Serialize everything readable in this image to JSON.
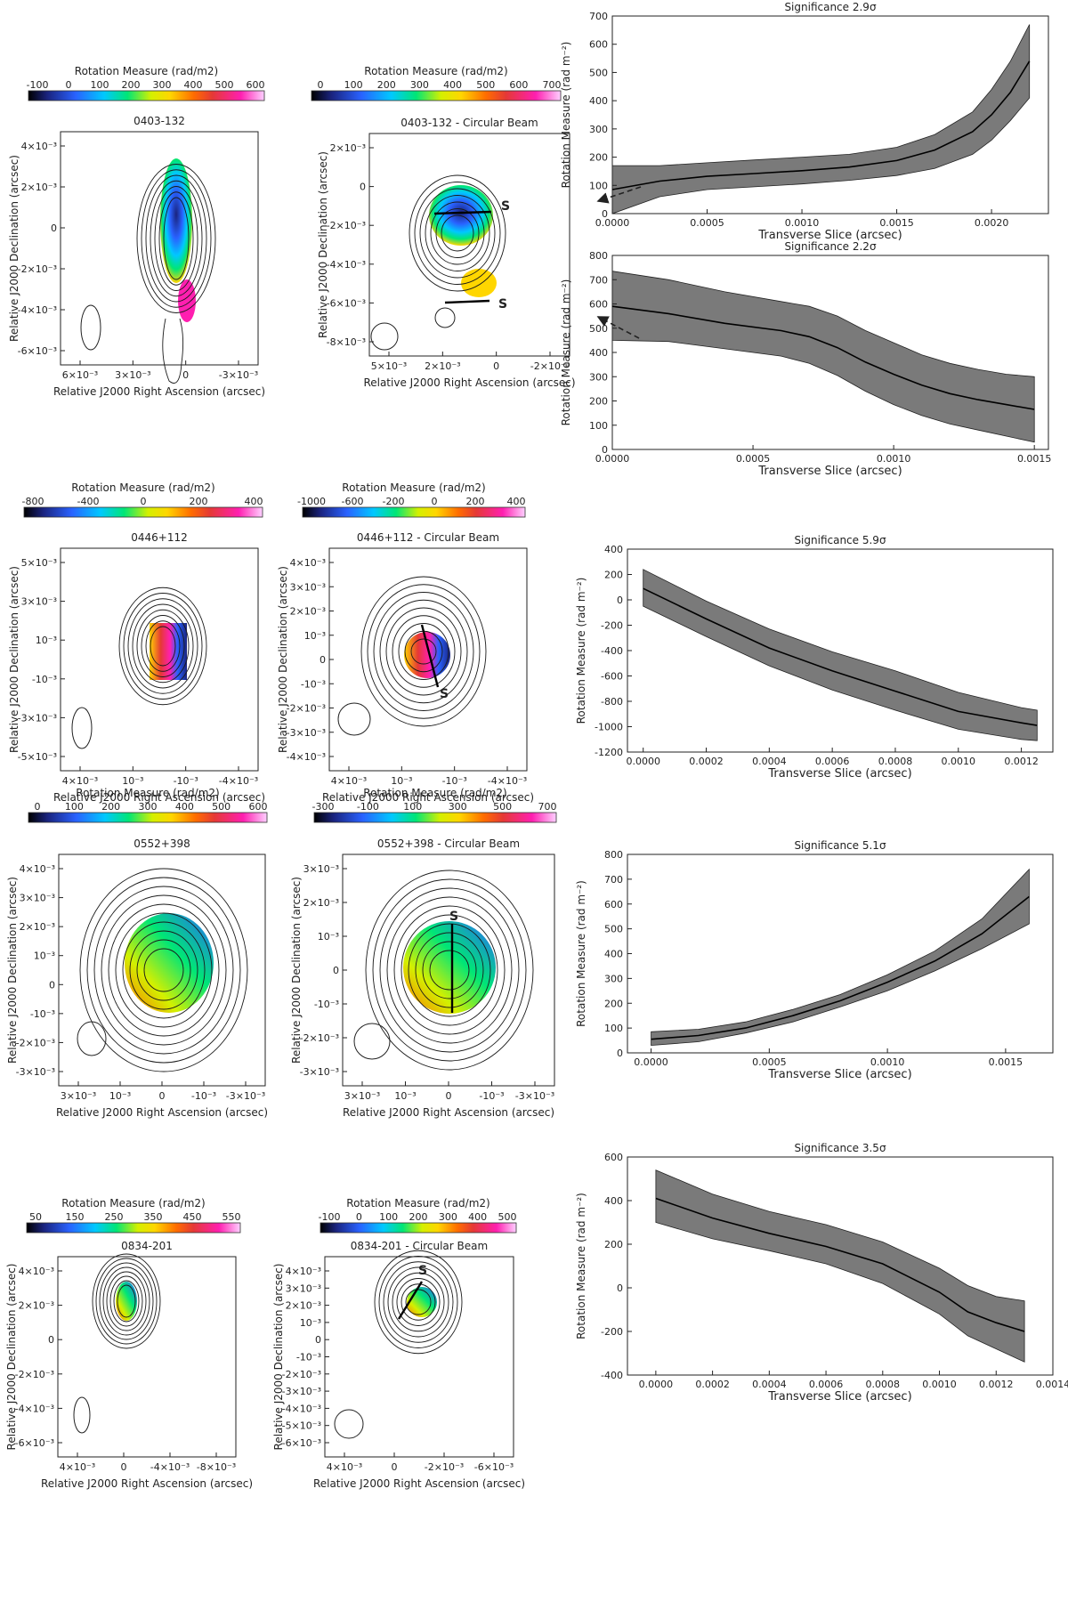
{
  "colorbar_label": "Rotation Measure (rad/m2)",
  "xlabel_map": "Relative J2000 Right Ascension (arcsec)",
  "ylabel_map": "Relative J2000 Declination (arcsec)",
  "slice_marker": "S",
  "colors": {
    "rm_gradient": [
      "#000000",
      "#1a237e",
      "#2962ff",
      "#00c8ff",
      "#00e676",
      "#d4f000",
      "#ffd600",
      "#ff6d00",
      "#e53935",
      "#ff1fb0",
      "#ffd0ff"
    ],
    "band": "#7a7a7a",
    "line": "#000000",
    "contour": "#1a1a1a"
  },
  "chart_data": [
    {
      "type": "image",
      "panel": "map",
      "title": "0403-132",
      "colorbar": {
        "label": "Rotation Measure (rad/m2)",
        "ticks": [
          "-100",
          "0",
          "100",
          "200",
          "300",
          "400",
          "500",
          "600"
        ]
      },
      "xticks": [
        "6×10⁻³",
        "3×10⁻³",
        "0",
        "-3×10⁻³"
      ],
      "yticks": [
        "4×10⁻³",
        "2×10⁻³",
        "0",
        "-2×10⁻³",
        "-4×10⁻³",
        "-6×10⁻³"
      ],
      "xlabel": "Relative J2000 Right Ascension (arcsec)",
      "ylabel": "Relative J2000 Declination (arcsec)"
    },
    {
      "type": "image",
      "panel": "map",
      "title": "0403-132 - Circular Beam",
      "colorbar": {
        "label": "Rotation Measure (rad/m2)",
        "ticks": [
          "0",
          "100",
          "200",
          "300",
          "400",
          "500",
          "600",
          "700"
        ]
      },
      "xticks": [
        "5×10⁻³",
        "2×10⁻³",
        "0",
        "-2×10⁻³"
      ],
      "yticks": [
        "2×10⁻³",
        "0",
        "-2×10⁻³",
        "-4×10⁻³",
        "-6×10⁻³",
        "-8×10⁻³"
      ],
      "xlabel": "Relative J2000 Right Ascension (arcsec)",
      "ylabel": "Relative J2000 Declination (arcsec)"
    },
    {
      "type": "line",
      "panel": "profile",
      "title": "Significance 2.9σ",
      "x": [
        0.0,
        0.00025,
        0.0005,
        0.00075,
        0.001,
        0.00125,
        0.0015,
        0.0017,
        0.0019,
        0.002,
        0.0021,
        0.0022
      ],
      "values": [
        85,
        115,
        132,
        142,
        152,
        165,
        188,
        225,
        290,
        350,
        430,
        540
      ],
      "lower": [
        0,
        60,
        85,
        95,
        105,
        118,
        135,
        160,
        210,
        260,
        330,
        410
      ],
      "upper": [
        170,
        170,
        180,
        190,
        200,
        210,
        235,
        280,
        360,
        440,
        540,
        670
      ],
      "xlim": [
        0,
        0.0023
      ],
      "ylim": [
        0,
        700
      ],
      "xticks": [
        "0.0000",
        "0.0005",
        "0.0010",
        "0.0015",
        "0.0020"
      ],
      "yticks": [
        "0",
        "100",
        "200",
        "300",
        "400",
        "500",
        "600",
        "700"
      ],
      "xlabel": "Transverse Slice (arcsec)",
      "ylabel": "Rotation Measure (rad m⁻²)"
    },
    {
      "type": "line",
      "panel": "profile",
      "title": "Significance 2.2σ",
      "x": [
        0.0,
        0.0002,
        0.0004,
        0.0006,
        0.0007,
        0.0008,
        0.0009,
        0.001,
        0.0011,
        0.0012,
        0.0013,
        0.0014,
        0.0015
      ],
      "values": [
        590,
        560,
        520,
        490,
        465,
        420,
        360,
        310,
        265,
        230,
        205,
        185,
        165
      ],
      "lower": [
        450,
        445,
        415,
        385,
        355,
        305,
        240,
        185,
        140,
        105,
        80,
        55,
        30
      ],
      "upper": [
        735,
        700,
        650,
        610,
        590,
        550,
        490,
        440,
        390,
        355,
        330,
        310,
        300
      ],
      "xlim": [
        0,
        0.00155
      ],
      "ylim": [
        0,
        800
      ],
      "xticks": [
        "0.0000",
        "0.0005",
        "0.0010",
        "0.0015"
      ],
      "yticks": [
        "0",
        "100",
        "200",
        "300",
        "400",
        "500",
        "600",
        "700",
        "800"
      ],
      "xlabel": "Transverse Slice (arcsec)",
      "ylabel": "Rotation Measure (rad m⁻²)"
    },
    {
      "type": "image",
      "panel": "map",
      "title": "0446+112",
      "colorbar": {
        "label": "Rotation Measure (rad/m2)",
        "ticks": [
          "-800",
          "-400",
          "0",
          "200",
          "400"
        ]
      },
      "xticks": [
        "4×10⁻³",
        "10⁻³",
        "-10⁻³",
        "-4×10⁻³"
      ],
      "yticks": [
        "5×10⁻³",
        "3×10⁻³",
        "10⁻³",
        "-10⁻³",
        "-3×10⁻³",
        "-5×10⁻³"
      ],
      "xlabel": "Relative J2000 Right Ascension (arcsec)",
      "ylabel": "Relative J2000 Declination (arcsec)"
    },
    {
      "type": "image",
      "panel": "map",
      "title": "0446+112 - Circular Beam",
      "colorbar": {
        "label": "Rotation Measure (rad/m2)",
        "ticks": [
          "-1000",
          "-600",
          "-200",
          "0",
          "200",
          "400"
        ]
      },
      "xticks": [
        "4×10⁻³",
        "10⁻³",
        "-10⁻³",
        "-4×10⁻³"
      ],
      "yticks": [
        "4×10⁻³",
        "3×10⁻³",
        "2×10⁻³",
        "10⁻³",
        "0",
        "-10⁻³",
        "-2×10⁻³",
        "-3×10⁻³",
        "-4×10⁻³"
      ],
      "xlabel": "Relative J2000 Right Ascension (arcsec)",
      "ylabel": "Relative J2000 Declination (arcsec)"
    },
    {
      "type": "line",
      "panel": "profile",
      "title": "Significance 5.9σ",
      "x": [
        0.0,
        0.0002,
        0.0004,
        0.0006,
        0.0008,
        0.001,
        0.0012,
        0.00125
      ],
      "values": [
        90,
        -150,
        -380,
        -560,
        -720,
        -880,
        -970,
        -990
      ],
      "lower": [
        -50,
        -290,
        -520,
        -710,
        -870,
        -1020,
        -1100,
        -1110
      ],
      "upper": [
        240,
        -10,
        -230,
        -410,
        -560,
        -730,
        -850,
        -870
      ],
      "xlim": [
        -5e-05,
        0.0013
      ],
      "ylim": [
        -1200,
        400
      ],
      "xticks": [
        "0.0000",
        "0.0002",
        "0.0004",
        "0.0006",
        "0.0008",
        "0.0010",
        "0.0012"
      ],
      "yticks": [
        "-1200",
        "-1000",
        "-800",
        "-600",
        "-400",
        "-200",
        "0",
        "200",
        "400"
      ],
      "xlabel": "Transverse Slice (arcsec)",
      "ylabel": "Rotation Measure (rad m⁻²)"
    },
    {
      "type": "image",
      "panel": "map",
      "title": "0552+398",
      "colorbar": {
        "label": "Rotation Measure (rad/m2)",
        "ticks": [
          "0",
          "100",
          "200",
          "300",
          "400",
          "500",
          "600"
        ]
      },
      "xticks": [
        "3×10⁻³",
        "10⁻³",
        "0",
        "-10⁻³",
        "-3×10⁻³"
      ],
      "yticks": [
        "4×10⁻³",
        "3×10⁻³",
        "2×10⁻³",
        "10⁻³",
        "0",
        "-10⁻³",
        "-2×10⁻³",
        "-3×10⁻³"
      ],
      "xlabel": "Relative J2000 Right Ascension (arcsec)",
      "ylabel": "Relative J2000 Declination (arcsec)"
    },
    {
      "type": "image",
      "panel": "map",
      "title": "0552+398 - Circular Beam",
      "colorbar": {
        "label": "Rotation Measure (rad/m2)",
        "ticks": [
          "-300",
          "-100",
          "100",
          "300",
          "500",
          "700"
        ]
      },
      "xticks": [
        "3×10⁻³",
        "10⁻³",
        "0",
        "-10⁻³",
        "-3×10⁻³"
      ],
      "yticks": [
        "3×10⁻³",
        "2×10⁻³",
        "10⁻³",
        "0",
        "-10⁻³",
        "-2×10⁻³",
        "-3×10⁻³"
      ],
      "xlabel": "Relative J2000 Right Ascension (arcsec)",
      "ylabel": "Relative J2000 Declination (arcsec)"
    },
    {
      "type": "line",
      "panel": "profile",
      "title": "Significance 5.1σ",
      "x": [
        0.0,
        0.0002,
        0.0004,
        0.0006,
        0.0008,
        0.001,
        0.0012,
        0.0014,
        0.0016
      ],
      "values": [
        55,
        70,
        100,
        150,
        210,
        285,
        370,
        480,
        630
      ],
      "lower": [
        30,
        45,
        80,
        125,
        185,
        250,
        330,
        420,
        520
      ],
      "upper": [
        85,
        95,
        125,
        175,
        235,
        315,
        410,
        540,
        740
      ],
      "xlim": [
        -0.0001,
        0.0017
      ],
      "ylim": [
        0,
        800
      ],
      "xticks": [
        "0.0000",
        "0.0005",
        "0.0010",
        "0.0015"
      ],
      "yticks": [
        "0",
        "100",
        "200",
        "300",
        "400",
        "500",
        "600",
        "700",
        "800"
      ],
      "xlabel": "Transverse Slice (arcsec)",
      "ylabel": "Rotation Measure (rad m⁻²)"
    },
    {
      "type": "image",
      "panel": "map",
      "title": "0834-201",
      "colorbar": {
        "label": "Rotation Measure (rad/m2)",
        "ticks": [
          "50",
          "150",
          "250",
          "350",
          "450",
          "550"
        ]
      },
      "xticks": [
        "4×10⁻³",
        "0",
        "-4×10⁻³",
        "-8×10⁻³"
      ],
      "yticks": [
        "4×10⁻³",
        "2×10⁻³",
        "0",
        "-2×10⁻³",
        "-4×10⁻³",
        "-6×10⁻³"
      ],
      "xlabel": "Relative J2000 Right Ascension (arcsec)",
      "ylabel": "Relative J2000 Declination (arcsec)"
    },
    {
      "type": "image",
      "panel": "map",
      "title": "0834-201 - Circular Beam",
      "colorbar": {
        "label": "Rotation Measure (rad/m2)",
        "ticks": [
          "-100",
          "0",
          "100",
          "200",
          "300",
          "400",
          "500"
        ]
      },
      "xticks": [
        "4×10⁻³",
        "0",
        "-2×10⁻³",
        "-6×10⁻³"
      ],
      "yticks": [
        "4×10⁻³",
        "3×10⁻³",
        "2×10⁻³",
        "10⁻³",
        "0",
        "-10⁻³",
        "-2×10⁻³",
        "-3×10⁻³",
        "-4×10⁻³",
        "-5×10⁻³",
        "-6×10⁻³"
      ],
      "xlabel": "Relative J2000 Right Ascension (arcsec)",
      "ylabel": "Relative J2000 Declination (arcsec)"
    },
    {
      "type": "line",
      "panel": "profile",
      "title": "Significance 3.5σ",
      "x": [
        0.0,
        0.0002,
        0.0004,
        0.0006,
        0.0008,
        0.001,
        0.0011,
        0.0012,
        0.0013
      ],
      "values": [
        410,
        320,
        250,
        190,
        110,
        -20,
        -110,
        -160,
        -200
      ],
      "lower": [
        300,
        225,
        170,
        110,
        20,
        -120,
        -220,
        -280,
        -340
      ],
      "upper": [
        540,
        430,
        350,
        290,
        210,
        90,
        10,
        -40,
        -60
      ],
      "xlim": [
        -0.0001,
        0.0014
      ],
      "ylim": [
        -400,
        600
      ],
      "xticks": [
        "0.0000",
        "0.0002",
        "0.0004",
        "0.0006",
        "0.0008",
        "0.0010",
        "0.0012",
        "0.0014"
      ],
      "yticks": [
        "-400",
        "-200",
        "0",
        "200",
        "400",
        "600"
      ],
      "xlabel": "Transverse Slice (arcsec)",
      "ylabel": "Rotation Measure (rad m⁻²)"
    }
  ]
}
